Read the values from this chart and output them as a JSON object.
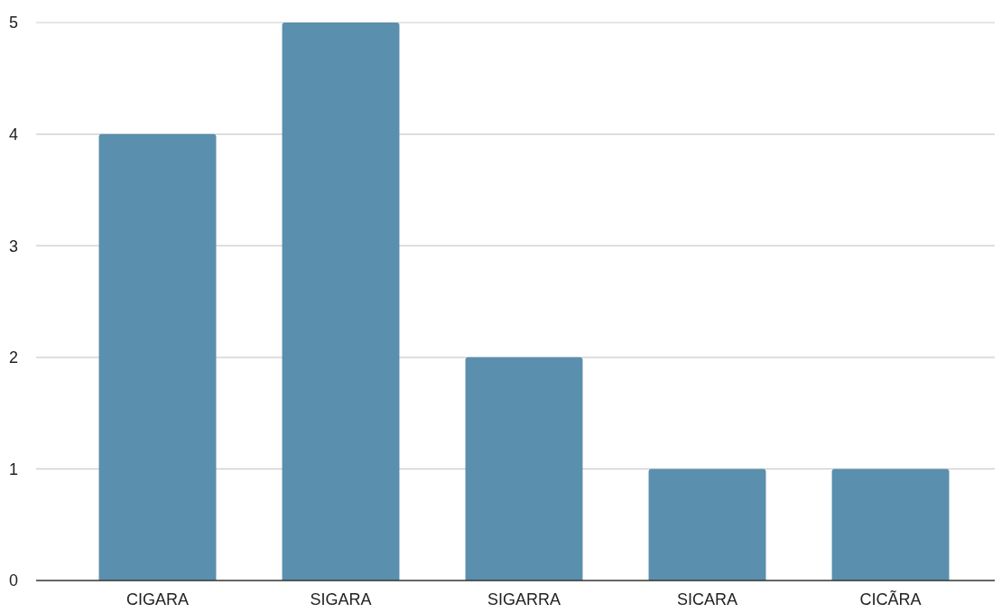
{
  "chart_data": {
    "type": "bar",
    "categories": [
      "CIGARA",
      "SIGARA",
      "SIGARRA",
      "SICARA",
      "CICÃRA"
    ],
    "values": [
      4,
      5,
      2,
      1,
      1
    ],
    "color": "#5a8fae",
    "ylim": [
      0,
      5
    ],
    "yticks": [
      0,
      1,
      2,
      3,
      4,
      5
    ],
    "grid": "y"
  }
}
